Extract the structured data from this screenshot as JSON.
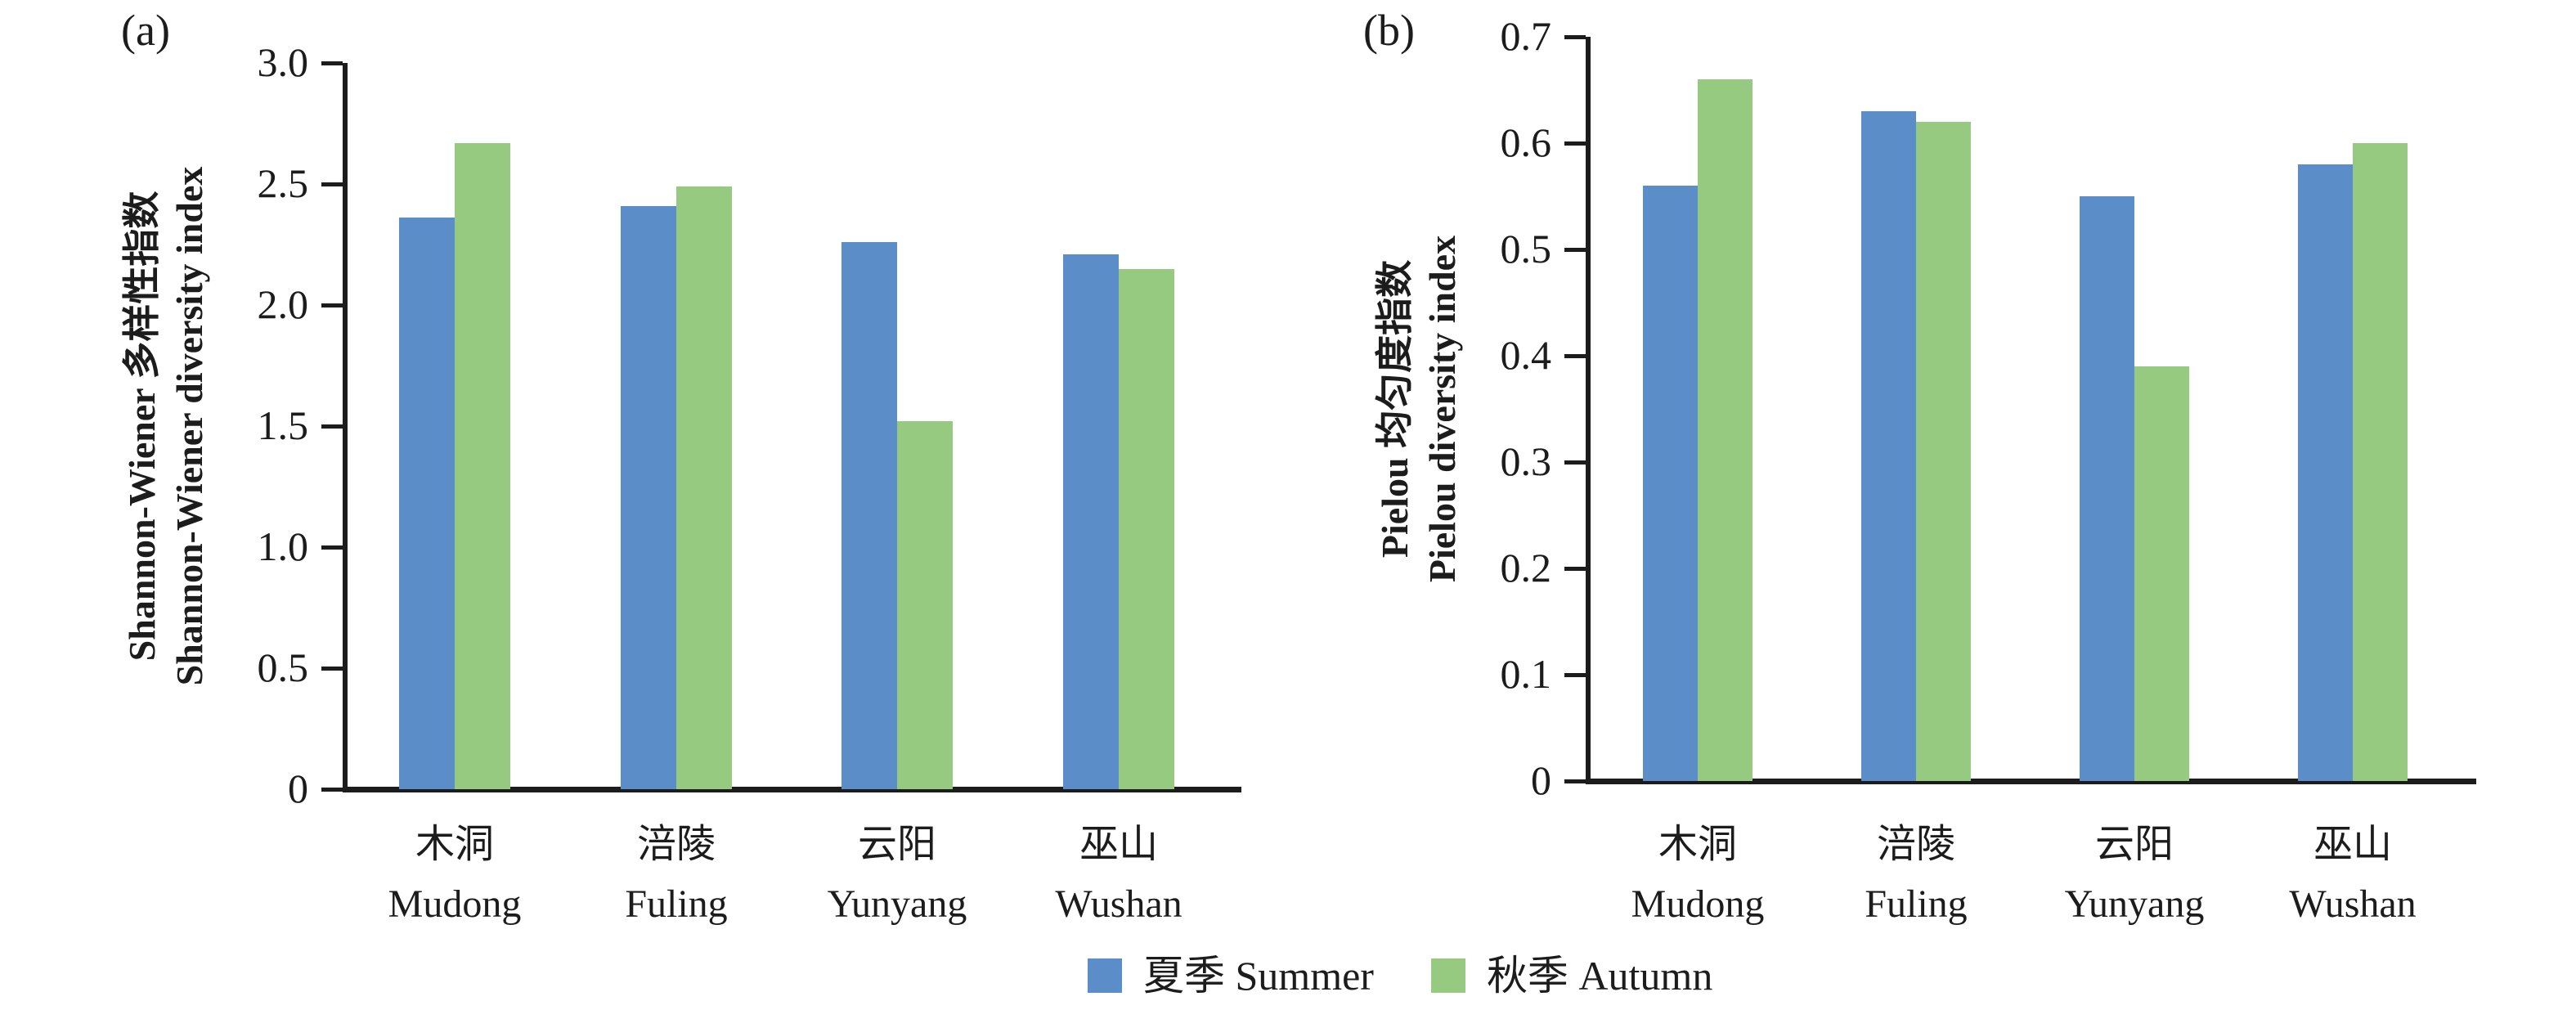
{
  "figure": {
    "panels": {
      "a_label": "(a)",
      "b_label": "(b)"
    }
  },
  "colors": {
    "summer_blue": "#5b8ec9",
    "autumn_green": "#95ca80",
    "axis_black": "#1c1c1c"
  },
  "legend": [
    {
      "label": "夏季 Summer",
      "color_key": "summer_blue"
    },
    {
      "label": "秋季 Autumn",
      "color_key": "autumn_green"
    }
  ],
  "chart_data": [
    {
      "id": "a",
      "type": "bar",
      "panel_label": "(a)",
      "title": "",
      "ylabel_line1": "Shannon-Wiener 多样性指数",
      "ylabel_line2": "Shannon-Wiener diversity index",
      "xlabel": "",
      "ylim": [
        0,
        3.0
      ],
      "ytick_labels_top_to_bottom": [
        "3.0",
        "2.5",
        "2.0",
        "1.5",
        "1.0",
        "0.5",
        "0"
      ],
      "grid": false,
      "legend_position": "bottom-center-shared",
      "categories": [
        {
          "zh": "木洞",
          "en": "Mudong"
        },
        {
          "zh": "涪陵",
          "en": "Fuling"
        },
        {
          "zh": "云阳",
          "en": "Yunyang"
        },
        {
          "zh": "巫山",
          "en": "Wushan"
        }
      ],
      "series": [
        {
          "name": "夏季 Summer",
          "color_key": "summer_blue",
          "values": [
            2.36,
            2.41,
            2.26,
            2.21
          ]
        },
        {
          "name": "秋季 Autumn",
          "color_key": "autumn_green",
          "values": [
            2.67,
            2.49,
            1.52,
            2.15
          ]
        }
      ]
    },
    {
      "id": "b",
      "type": "bar",
      "panel_label": "(b)",
      "title": "",
      "ylabel_line1": "Pielou 均匀度指数",
      "ylabel_line2": "Pielou diversity index",
      "xlabel": "",
      "ylim": [
        0,
        0.7
      ],
      "ytick_labels_top_to_bottom": [
        "0.7",
        "0.6",
        "0.5",
        "0.4",
        "0.3",
        "0.2",
        "0.1",
        "0"
      ],
      "grid": false,
      "legend_position": "bottom-center-shared",
      "categories": [
        {
          "zh": "木洞",
          "en": "Mudong"
        },
        {
          "zh": "涪陵",
          "en": "Fuling"
        },
        {
          "zh": "云阳",
          "en": "Yunyang"
        },
        {
          "zh": "巫山",
          "en": "Wushan"
        }
      ],
      "series": [
        {
          "name": "夏季 Summer",
          "color_key": "summer_blue",
          "values": [
            0.56,
            0.63,
            0.55,
            0.58
          ]
        },
        {
          "name": "秋季 Autumn",
          "color_key": "autumn_green",
          "values": [
            0.66,
            0.62,
            0.39,
            0.6
          ]
        }
      ]
    }
  ]
}
